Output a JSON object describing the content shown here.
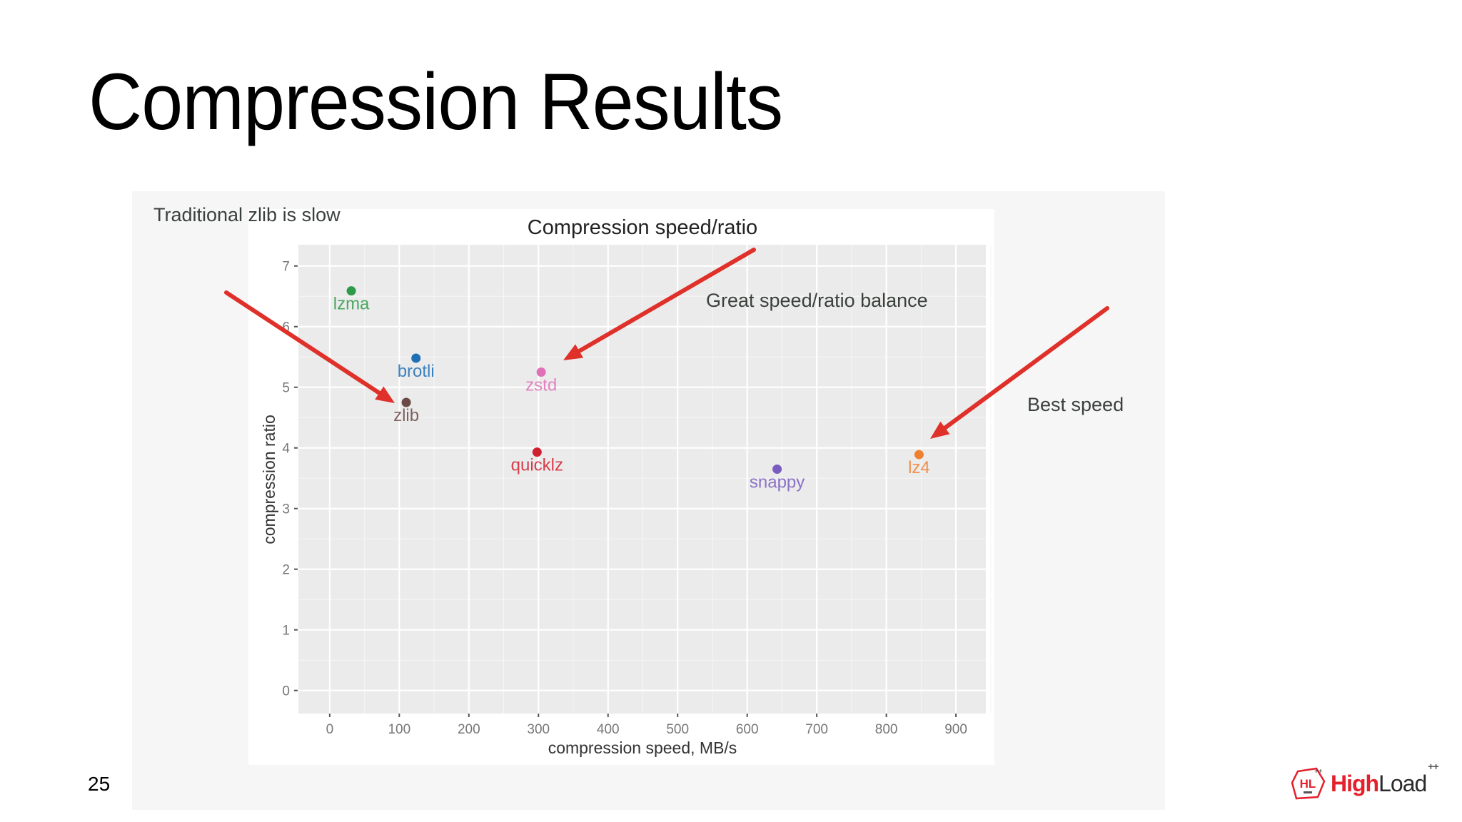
{
  "slide": {
    "title": "Compression Results",
    "page_number": "25"
  },
  "annotations": {
    "slow": "Traditional zlib is slow",
    "balance": "Great speed/ratio balance",
    "best_speed": "Best speed"
  },
  "logo": {
    "badge_text": "HL",
    "high": "High",
    "load": "Load",
    "plus": "++",
    "accent_color": "#e3202c"
  },
  "chart_data": {
    "type": "scatter",
    "title": "Compression speed/ratio",
    "xlabel": "compression speed, MB/s",
    "ylabel": "compression ratio",
    "xlim": [
      -45,
      943
    ],
    "ylim": [
      -0.38,
      7.35
    ],
    "xticks": [
      0,
      100,
      200,
      300,
      400,
      500,
      600,
      700,
      800,
      900
    ],
    "yticks": [
      0,
      1,
      2,
      3,
      4,
      5,
      6,
      7
    ],
    "grid": true,
    "legend": "none",
    "points": [
      {
        "label": "lzma",
        "x": 31,
        "y": 6.59,
        "color": "#2e9a48"
      },
      {
        "label": "brotli",
        "x": 124,
        "y": 5.48,
        "color": "#1f6fb4"
      },
      {
        "label": "zlib",
        "x": 110,
        "y": 4.75,
        "color": "#6b4a45"
      },
      {
        "label": "zstd",
        "x": 304,
        "y": 5.25,
        "color": "#e070b8"
      },
      {
        "label": "quicklz",
        "x": 298,
        "y": 3.93,
        "color": "#d0202f"
      },
      {
        "label": "snappy",
        "x": 643,
        "y": 3.65,
        "color": "#7a5cc0"
      },
      {
        "label": "lz4",
        "x": 847,
        "y": 3.89,
        "color": "#f08030"
      }
    ],
    "arrows": [
      {
        "from": [
          317,
          410
        ],
        "to": [
          553,
          565
        ],
        "target": "zlib"
      },
      {
        "from": [
          1056,
          350
        ],
        "to": [
          789,
          505
        ],
        "target": "zstd"
      },
      {
        "from": [
          1551,
          432
        ],
        "to": [
          1303,
          615
        ],
        "target": "lz4"
      }
    ]
  }
}
